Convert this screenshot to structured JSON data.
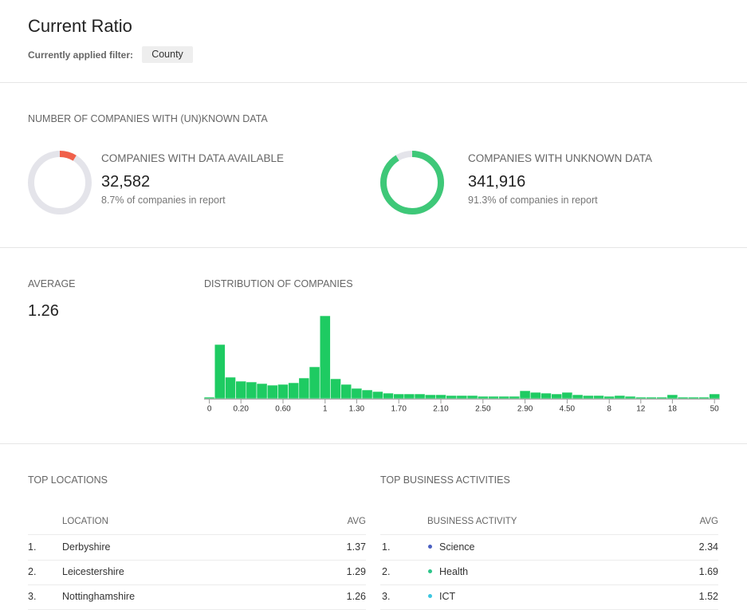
{
  "header": {
    "title": "Current Ratio",
    "filter_label": "Currently applied filter:",
    "filter_value": "County"
  },
  "known": {
    "title": "NUMBER OF COMPANIES WITH (UN)KNOWN DATA",
    "items": [
      {
        "label": "COMPANIES WITH DATA AVAILABLE",
        "count": "32,582",
        "share": "8.7% of companies in report",
        "percent": 8.7,
        "color": "#f0604a"
      },
      {
        "label": "COMPANIES WITH UNKNOWN DATA",
        "count": "341,916",
        "share": "91.3% of companies in report",
        "percent": 91.3,
        "color": "#3ec878"
      }
    ]
  },
  "average": {
    "label": "AVERAGE",
    "value": 1.26
  },
  "chart_data": {
    "type": "bar",
    "title": "DISTRIBUTION OF COMPANIES",
    "color": "#1ecb62",
    "categories": [
      "0",
      null,
      null,
      "0.20",
      null,
      null,
      null,
      "0.60",
      null,
      null,
      null,
      "1",
      null,
      null,
      "1.30",
      null,
      null,
      null,
      "1.70",
      null,
      null,
      null,
      "2.10",
      null,
      null,
      null,
      "2.50",
      null,
      null,
      null,
      "2.90",
      null,
      null,
      null,
      "4.50",
      null,
      null,
      null,
      "8",
      null,
      null,
      "12",
      null,
      null,
      "18",
      null,
      null,
      null,
      "50"
    ],
    "values": [
      2,
      68,
      27,
      22,
      21,
      19,
      17,
      18,
      20,
      26,
      40,
      104,
      25,
      18,
      13,
      11,
      9,
      7,
      6,
      6,
      6,
      5,
      5,
      4,
      4,
      4,
      3,
      3,
      3,
      3,
      10,
      8,
      7,
      6,
      8,
      5,
      4,
      4,
      3,
      4,
      3,
      2,
      2,
      2,
      5,
      2,
      2,
      2,
      6
    ]
  },
  "locations": {
    "title": "TOP LOCATIONS",
    "columns": [
      "LOCATION",
      "AVG"
    ],
    "rows": [
      {
        "rank": "1.",
        "name": "Derbyshire",
        "avg": 1.37
      },
      {
        "rank": "2.",
        "name": "Leicestershire",
        "avg": 1.29
      },
      {
        "rank": "3.",
        "name": "Nottinghamshire",
        "avg": 1.26
      }
    ]
  },
  "activities": {
    "title": "TOP BUSINESS ACTIVITIES",
    "columns": [
      "BUSINESS ACTIVITY",
      "AVG"
    ],
    "rows": [
      {
        "rank": "1.",
        "name": "Science",
        "avg": 2.34,
        "color": "#4a5fc1"
      },
      {
        "rank": "2.",
        "name": "Health",
        "avg": 1.69,
        "color": "#2cc489"
      },
      {
        "rank": "3.",
        "name": "ICT",
        "avg": 1.52,
        "color": "#3cc6e0"
      }
    ]
  }
}
